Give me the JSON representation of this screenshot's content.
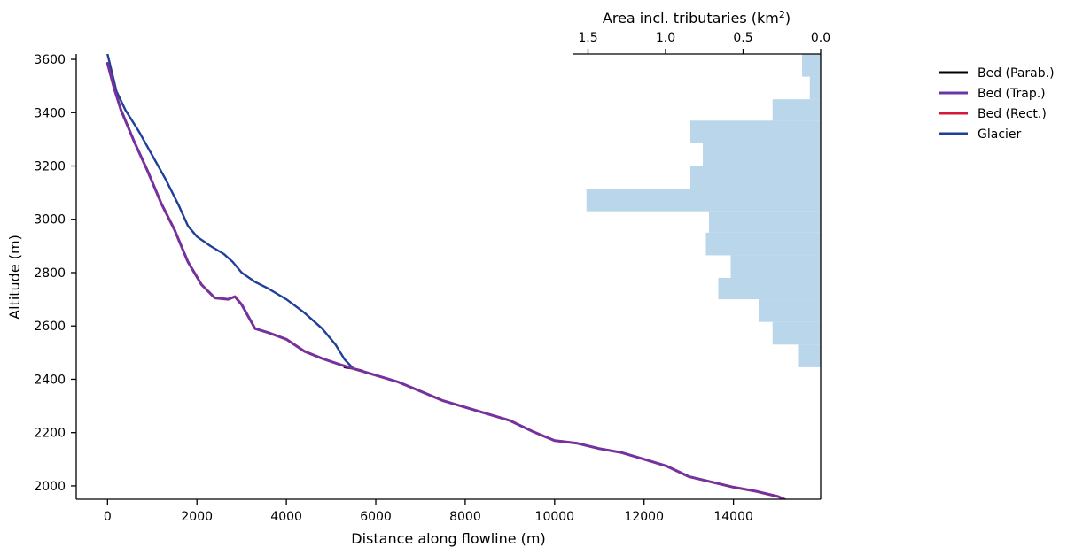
{
  "chart_data": {
    "type": "line",
    "xlabel": "Distance along flowline (m)",
    "ylabel": "Altitude (m)",
    "top_axis_label_main": "Area incl. tributaries (km",
    "top_axis_label_sup": "2",
    "top_axis_label_end": ")",
    "xlim": [
      -700,
      15950
    ],
    "ylim": [
      1950,
      3620
    ],
    "area_xlim": [
      1.6,
      0.0
    ],
    "x_ticks": [
      0,
      2000,
      4000,
      6000,
      8000,
      10000,
      12000,
      14000
    ],
    "x_tick_labels": [
      "0",
      "2000",
      "4000",
      "6000",
      "8000",
      "10000",
      "12000",
      "14000"
    ],
    "y_ticks": [
      2000,
      2200,
      2400,
      2600,
      2800,
      3000,
      3200,
      3400,
      3600
    ],
    "y_tick_labels": [
      "2000",
      "2200",
      "2400",
      "2600",
      "2800",
      "3000",
      "3200",
      "3400",
      "3600"
    ],
    "area_ticks": [
      1.5,
      1.0,
      0.5,
      0.0
    ],
    "area_tick_labels": [
      "1.5",
      "1.0",
      "0.5",
      "0.0"
    ],
    "grid": false,
    "legend_position": "outside top-right",
    "series": [
      {
        "name": "Glacier",
        "color": "#1f3f99",
        "x": [
          0,
          200,
          400,
          700,
          1000,
          1300,
          1600,
          1800,
          2000,
          2300,
          2600,
          2800,
          3000,
          3300,
          3600,
          4000,
          4400,
          4800,
          5100,
          5300,
          5500
        ],
        "y": [
          3620,
          3480,
          3410,
          3330,
          3240,
          3150,
          3050,
          2975,
          2935,
          2900,
          2870,
          2840,
          2800,
          2765,
          2740,
          2700,
          2650,
          2590,
          2530,
          2475,
          2440
        ]
      },
      {
        "name": "Bed (Parab.)",
        "color": "#000000",
        "x": [
          5300,
          5500,
          5700
        ],
        "y": [
          2445,
          2440,
          2432
        ]
      },
      {
        "name": "Bed (Rect.)",
        "color": "#d6173e",
        "x": [
          0,
          150,
          300,
          600,
          900,
          1200,
          1500,
          1800,
          2100,
          2400,
          2700,
          2850,
          3000,
          3300,
          3600,
          4000,
          4400,
          4800,
          5200,
          5600,
          6000,
          6500,
          7000,
          7500,
          8000,
          8500,
          9000,
          9500,
          10000,
          10500,
          11000,
          11500,
          12000,
          12500,
          13000,
          13500,
          14000,
          14500,
          15000,
          15200
        ],
        "y": [
          3585,
          3490,
          3410,
          3290,
          3180,
          3060,
          2960,
          2840,
          2755,
          2705,
          2700,
          2710,
          2680,
          2590,
          2575,
          2550,
          2505,
          2478,
          2455,
          2435,
          2415,
          2390,
          2355,
          2320,
          2295,
          2270,
          2245,
          2205,
          2170,
          2160,
          2140,
          2125,
          2100,
          2075,
          2035,
          2015,
          1995,
          1980,
          1960,
          1945
        ]
      },
      {
        "name": "Bed (Trap.)",
        "color": "#6a35a8",
        "x": [
          0,
          150,
          300,
          600,
          900,
          1200,
          1500,
          1800,
          2100,
          2400,
          2700,
          2850,
          3000,
          3300,
          3600,
          4000,
          4400,
          4800,
          5200,
          5600,
          6000,
          6500,
          7000,
          7500,
          8000,
          8500,
          9000,
          9500,
          10000,
          10500,
          11000,
          11500,
          12000,
          12500,
          13000,
          13500,
          14000,
          14500,
          15000,
          15200
        ],
        "y": [
          3585,
          3490,
          3410,
          3290,
          3180,
          3060,
          2960,
          2840,
          2755,
          2705,
          2700,
          2710,
          2680,
          2590,
          2575,
          2550,
          2505,
          2478,
          2455,
          2435,
          2415,
          2390,
          2355,
          2320,
          2295,
          2270,
          2245,
          2205,
          2170,
          2160,
          2140,
          2125,
          2100,
          2075,
          2035,
          2015,
          1995,
          1980,
          1960,
          1945
        ]
      }
    ],
    "area_histogram": {
      "color": "#b9d6ea",
      "bins": [
        {
          "y0": 2445,
          "y1": 2530,
          "area": 0.14
        },
        {
          "y0": 2530,
          "y1": 2615,
          "area": 0.31
        },
        {
          "y0": 2615,
          "y1": 2700,
          "area": 0.4
        },
        {
          "y0": 2700,
          "y1": 2780,
          "area": 0.66
        },
        {
          "y0": 2780,
          "y1": 2865,
          "area": 0.58
        },
        {
          "y0": 2865,
          "y1": 2950,
          "area": 0.74
        },
        {
          "y0": 2950,
          "y1": 3030,
          "area": 0.72
        },
        {
          "y0": 3030,
          "y1": 3115,
          "area": 1.51
        },
        {
          "y0": 3115,
          "y1": 3200,
          "area": 0.84
        },
        {
          "y0": 3200,
          "y1": 3285,
          "area": 0.76
        },
        {
          "y0": 3285,
          "y1": 3370,
          "area": 0.84
        },
        {
          "y0": 3370,
          "y1": 3450,
          "area": 0.31
        },
        {
          "y0": 3450,
          "y1": 3535,
          "area": 0.07
        },
        {
          "y0": 3535,
          "y1": 3620,
          "area": 0.12
        }
      ]
    },
    "legend": [
      {
        "label": "Bed (Parab.)",
        "color": "#000000"
      },
      {
        "label": "Bed (Trap.)",
        "color": "#6a35a8"
      },
      {
        "label": "Bed (Rect.)",
        "color": "#d6173e"
      },
      {
        "label": "Glacier",
        "color": "#1f3f99"
      }
    ]
  }
}
